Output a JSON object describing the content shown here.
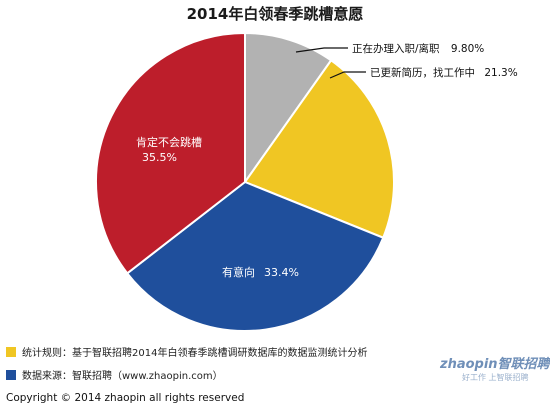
{
  "chart_data": {
    "type": "pie",
    "title": "2014年白领春季跳槽意愿",
    "slices": [
      {
        "label": "正在办理入职/离职",
        "value": 9.8,
        "value_text": "9.80%",
        "color": "#b2b2b2"
      },
      {
        "label": "已更新简历，找工作中",
        "value": 21.3,
        "value_text": "21.3%",
        "color": "#f0c623"
      },
      {
        "label": "有意向",
        "value": 33.4,
        "value_text": "33.4%",
        "color": "#1f4f9c"
      },
      {
        "label": "肯定不会跳槽",
        "value": 35.5,
        "value_text": "35.5%",
        "color": "#bd1e2b"
      }
    ]
  },
  "notes": [
    {
      "text": "统计规则：基于智联招聘2014年白领春季跳槽调研数据库的数据监测统计分析",
      "color": "#f0c623"
    },
    {
      "text": "数据来源：智联招聘（www.zhaopin.com）",
      "color": "#1f4f9c"
    }
  ],
  "copyright": "Copyright  ©  2014 zhaopin all rights reserved",
  "logo": {
    "main": "zhaopin智联招聘",
    "sub": "好工作 上智联招聘"
  }
}
